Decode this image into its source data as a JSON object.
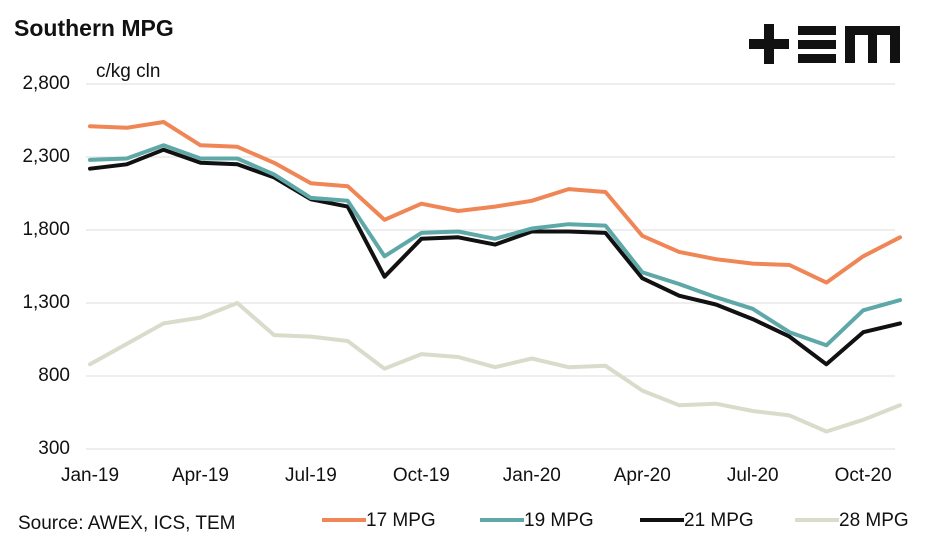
{
  "chart_data": {
    "type": "line",
    "title": "Southern MPG",
    "y_label": "c/kg cln",
    "source": "Source: AWEX, ICS, TEM",
    "x": [
      "2019-01",
      "2019-02",
      "2019-03",
      "2019-04",
      "2019-05",
      "2019-06",
      "2019-07",
      "2019-08",
      "2019-09",
      "2019-10",
      "2019-11",
      "2019-12",
      "2020-01",
      "2020-02",
      "2020-03",
      "2020-04",
      "2020-05",
      "2020-06",
      "2020-07",
      "2020-08",
      "2020-09",
      "2020-10",
      "2020-11"
    ],
    "xlim": [
      "2019-01",
      "2020-11"
    ],
    "xticks": [
      {
        "value": "2019-01",
        "label": "Jan-19"
      },
      {
        "value": "2019-04",
        "label": "Apr-19"
      },
      {
        "value": "2019-07",
        "label": "Jul-19"
      },
      {
        "value": "2019-10",
        "label": "Oct-19"
      },
      {
        "value": "2020-01",
        "label": "Jan-20"
      },
      {
        "value": "2020-04",
        "label": "Apr-20"
      },
      {
        "value": "2020-07",
        "label": "Jul-20"
      },
      {
        "value": "2020-10",
        "label": "Oct-20"
      }
    ],
    "ylim": [
      300,
      2800
    ],
    "yticks": [
      {
        "value": 300,
        "label": "300"
      },
      {
        "value": 800,
        "label": "800"
      },
      {
        "value": 1300,
        "label": "1,300"
      },
      {
        "value": 1800,
        "label": "1,800"
      },
      {
        "value": 2300,
        "label": "2,300"
      },
      {
        "value": 2800,
        "label": "2,800"
      }
    ],
    "grid": true,
    "legend": "bottom",
    "series": [
      {
        "name": "17 MPG",
        "color": "#f08555",
        "values": [
          2510,
          2500,
          2540,
          2380,
          2370,
          2260,
          2120,
          2100,
          1870,
          1980,
          1930,
          1960,
          2000,
          2080,
          2060,
          1760,
          1650,
          1600,
          1570,
          1560,
          1440,
          1620,
          1750
        ]
      },
      {
        "name": "19 MPG",
        "color": "#5fa8a8",
        "values": [
          2280,
          2290,
          2380,
          2290,
          2290,
          2180,
          2020,
          2000,
          1620,
          1780,
          1790,
          1740,
          1810,
          1840,
          1830,
          1510,
          1430,
          1340,
          1260,
          1100,
          1010,
          1250,
          1320
        ]
      },
      {
        "name": "21 MPG",
        "color": "#111111",
        "values": [
          2220,
          2250,
          2350,
          2260,
          2250,
          2160,
          2010,
          1960,
          1480,
          1740,
          1750,
          1700,
          1790,
          1790,
          1780,
          1470,
          1350,
          1290,
          1190,
          1070,
          880,
          1100,
          1160
        ]
      },
      {
        "name": "28 MPG",
        "color": "#d9dccb",
        "values": [
          880,
          1020,
          1160,
          1200,
          1300,
          1080,
          1070,
          1040,
          850,
          950,
          930,
          860,
          920,
          860,
          870,
          700,
          600,
          610,
          560,
          530,
          420,
          500,
          600
        ]
      }
    ]
  }
}
